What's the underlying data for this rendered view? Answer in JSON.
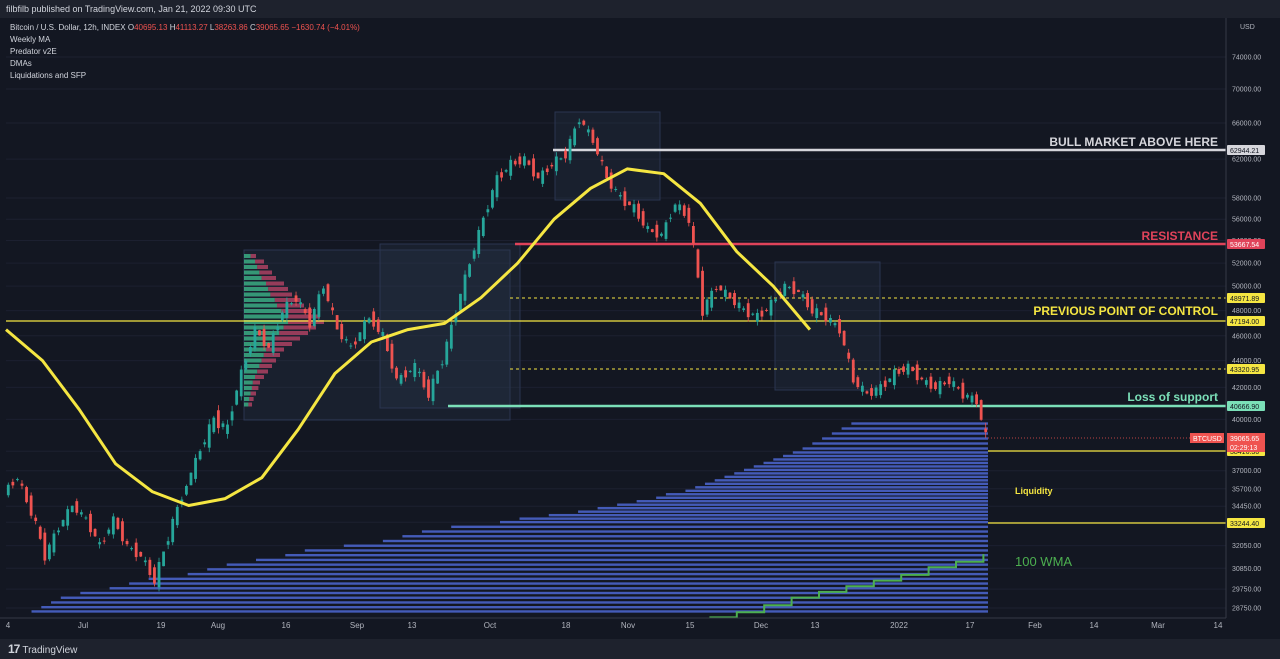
{
  "header": {
    "publisher": "filbfilb published on TradingView.com, Jan 21, 2022 09:30 UTC"
  },
  "legend": {
    "symbol": "Bitcoin / U.S. Dollar, 12h, INDEX",
    "o_label": "O",
    "o": "40695.13",
    "h_label": "H",
    "h": "41113.27",
    "l_label": "L",
    "l": "38263.86",
    "c_label": "C",
    "c": "39065.65",
    "chg": "−1630.74 (−4.01%)",
    "indicators": [
      "Weekly MA",
      "Predator v2E",
      "DMAs",
      "Liquidations and SFP"
    ]
  },
  "annotations": {
    "bull": "BULL MARKET ABOVE HERE",
    "resistance": "RESISTANCE",
    "poc": "PREVIOUS POINT OF CONTROL",
    "support": "Loss of support",
    "liquidity": "Liquidity",
    "wma": "100 WMA"
  },
  "footer": {
    "brand": "TradingView"
  },
  "colors": {
    "bg": "#131722",
    "up": "#26a69a",
    "down": "#ef5350",
    "ma_yellow": "#f5e642",
    "bull_line": "#d6d6dc",
    "resistance": "#e0435a",
    "support": "#7be0b8",
    "liquidity": "#4a63c9",
    "wma": "#4caf50",
    "poc_text": "#f5e642"
  },
  "chart_data": {
    "type": "line",
    "title": "Bitcoin / U.S. Dollar, 12h, INDEX",
    "yunit": "USD",
    "ylim": [
      28000,
      77000
    ],
    "y_ticks": [
      28750,
      29750,
      30850,
      32050,
      33300,
      34450,
      35700,
      37000,
      38400,
      40000,
      42000,
      44000,
      46000,
      48000,
      50000,
      52000,
      54000,
      56000,
      58000,
      62000,
      66000,
      70000,
      74000
    ],
    "x_ticks": [
      "4",
      "Jul",
      "19",
      "Aug",
      "16",
      "Sep",
      "13",
      "Oct",
      "18",
      "Nov",
      "15",
      "Dec",
      "13",
      "2022",
      "17",
      "Feb",
      "14",
      "Mar",
      "14"
    ],
    "levels": [
      {
        "name": "bull",
        "value": 62944.21,
        "label": "62944.21"
      },
      {
        "name": "resistance",
        "value": 53667.54,
        "label": "53667.54"
      },
      {
        "name": "poc_dashed",
        "value": 48971.89,
        "label": "48971.89"
      },
      {
        "name": "poc",
        "value": 47194.0,
        "label": "47194.00"
      },
      {
        "name": "dashed_2",
        "value": 43320.95,
        "label": "43320.95"
      },
      {
        "name": "support",
        "value": 40666.9,
        "label": "40666.90"
      },
      {
        "name": "yellow_1",
        "value": 38416.36,
        "label": "38416.36"
      },
      {
        "name": "yellow_2",
        "value": 33244.4,
        "label": "33244.40"
      }
    ],
    "last_price": {
      "symbol": "BTCUSD",
      "value": 39065.65,
      "label": "39065.65",
      "countdown": "02:29:13"
    },
    "price_series": {
      "name": "Bitcoin / U.S. Dollar",
      "x": [
        0,
        3,
        6,
        9,
        12,
        15,
        18,
        21,
        24,
        27,
        30,
        33,
        36,
        40,
        43,
        46,
        49,
        52,
        55,
        58,
        61,
        64,
        67,
        70,
        73,
        76,
        80,
        83,
        86,
        90,
        93,
        96,
        99,
        102,
        105,
        108,
        111,
        114,
        117,
        120,
        123,
        126,
        129,
        132,
        135,
        138,
        141,
        144,
        147,
        150,
        153,
        156,
        159,
        162,
        165,
        168,
        171,
        174,
        177,
        180,
        183,
        186,
        189,
        192,
        195,
        198,
        201,
        204,
        207,
        210,
        213,
        215
      ],
      "values": [
        35500,
        36500,
        34000,
        31500,
        33000,
        34500,
        33500,
        32000,
        33500,
        32000,
        31500,
        30200,
        32500,
        36000,
        38500,
        40000,
        39500,
        43000,
        46500,
        45000,
        48000,
        49000,
        47000,
        50000,
        46500,
        45000,
        47500,
        46000,
        42500,
        43500,
        41500,
        44000,
        48000,
        52000,
        56000,
        60000,
        61500,
        62000,
        60000,
        61500,
        62500,
        66500,
        64000,
        60000,
        58000,
        57000,
        55000,
        54500,
        57500,
        56000,
        48000,
        50000,
        49000,
        48000,
        47500,
        48500,
        50000,
        49500,
        48000,
        47500,
        46500,
        42500,
        41500,
        42000,
        43000,
        43500,
        42500,
        42000,
        42500,
        41500,
        41000,
        39065.65
      ]
    },
    "ma_series": {
      "name": "MA",
      "x": [
        0,
        8,
        16,
        24,
        32,
        40,
        48,
        56,
        64,
        72,
        80,
        88,
        96,
        104,
        112,
        120,
        128,
        136,
        144,
        152,
        160,
        168,
        176
      ],
      "values": [
        46500,
        44000,
        40500,
        37500,
        35500,
        34500,
        35000,
        36500,
        39500,
        43000,
        45500,
        46500,
        47000,
        49000,
        52000,
        56000,
        59000,
        61000,
        60500,
        57500,
        53000,
        50000,
        46500
      ]
    },
    "wma_series": {
      "name": "100 WMA",
      "x": [
        154,
        160,
        166,
        172,
        178,
        184,
        190,
        196,
        202,
        208,
        214
      ],
      "values": [
        28200,
        28500,
        28900,
        29300,
        29600,
        29900,
        30200,
        30500,
        30900,
        31200,
        31600
      ]
    },
    "liquidity_profile": {
      "price_from": 28500,
      "price_to": 40000,
      "step": 250,
      "depth": [
        0.98,
        0.97,
        0.96,
        0.95,
        0.93,
        0.9,
        0.88,
        0.86,
        0.82,
        0.8,
        0.78,
        0.75,
        0.72,
        0.7,
        0.66,
        0.62,
        0.6,
        0.58,
        0.55,
        0.5,
        0.48,
        0.45,
        0.42,
        0.4,
        0.38,
        0.36,
        0.34,
        0.33,
        0.31,
        0.3,
        0.29,
        0.28,
        0.27,
        0.26,
        0.25,
        0.24,
        0.23,
        0.22,
        0.21,
        0.2,
        0.19,
        0.18,
        0.17,
        0.16,
        0.15,
        0.14
      ]
    }
  }
}
